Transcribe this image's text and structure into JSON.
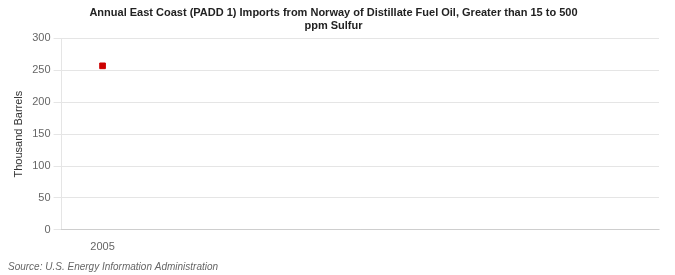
{
  "chart_data": {
    "type": "scatter",
    "title": "Annual East Coast (PADD 1) Imports from Norway of Distillate Fuel Oil, Greater than 15 to 500\nppm Sulfur",
    "ylabel": "Thousand Barrels",
    "annotations": [
      "Source: U.S. Energy Information Administration"
    ],
    "x": [
      2005
    ],
    "values": [
      257
    ],
    "color": "#cc0000",
    "marker": "square",
    "xlim": [
      2004.3,
      2014.5
    ],
    "ylim": [
      0,
      300
    ],
    "xticks": [
      2005
    ],
    "yticks": [
      0,
      50,
      100,
      150,
      200,
      250,
      300
    ],
    "grid": "y"
  }
}
